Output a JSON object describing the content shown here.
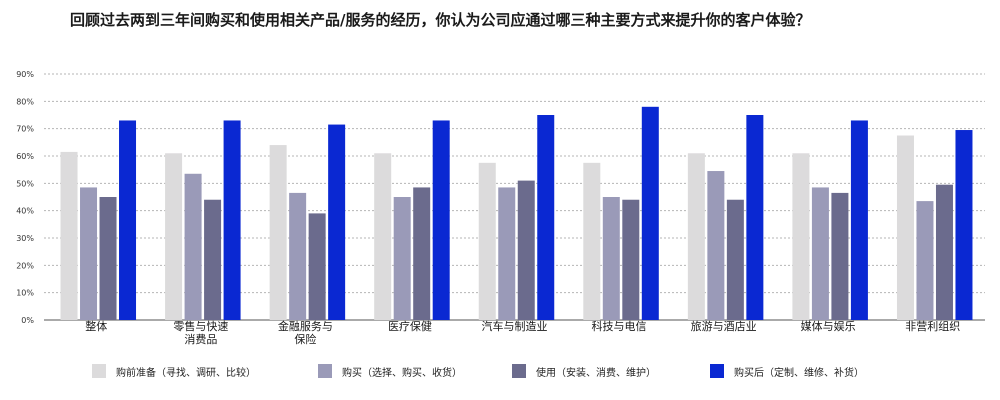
{
  "title": "回顾过去两到三年间购买和使用相关产品/服务的经历，你认为公司应通过哪三种主要方式来提升你的客户体验？",
  "chart_data": {
    "type": "bar",
    "categories": [
      [
        "整体"
      ],
      [
        "零售与快速",
        "消费品"
      ],
      [
        "金融服务与",
        "保险"
      ],
      [
        "医疗保健"
      ],
      [
        "汽车与制造业"
      ],
      [
        "科技与电信"
      ],
      [
        "旅游与酒店业"
      ],
      [
        "媒体与娱乐"
      ],
      [
        "非营利组织"
      ]
    ],
    "series": [
      {
        "name": "购前准备（寻找、调研、比较）",
        "color": "#dcdbdc",
        "values": [
          61.5,
          61,
          64,
          61,
          57.5,
          57.5,
          61,
          61,
          67.5
        ]
      },
      {
        "name": "购买（选择、购买、收货）",
        "color": "#9a9ab8",
        "values": [
          48.5,
          53.5,
          46.5,
          45,
          48.5,
          45,
          54.5,
          48.5,
          43.5
        ]
      },
      {
        "name": "使用（安装、消费、维护）",
        "color": "#6b6b8d",
        "values": [
          45,
          44,
          39,
          48.5,
          51,
          44,
          44,
          46.5,
          49.5
        ]
      },
      {
        "name": "购买后（定制、维修、补货）",
        "color": "#0a28d2",
        "values": [
          73,
          73,
          71.5,
          73,
          75,
          78,
          75,
          73,
          69.5
        ]
      }
    ],
    "ylim": [
      0,
      90
    ],
    "yticks": [
      "0%",
      "10%",
      "20%",
      "30%",
      "40%",
      "50%",
      "60%",
      "70%",
      "80%",
      "90%"
    ],
    "grid": true,
    "legend_position": "bottom"
  }
}
